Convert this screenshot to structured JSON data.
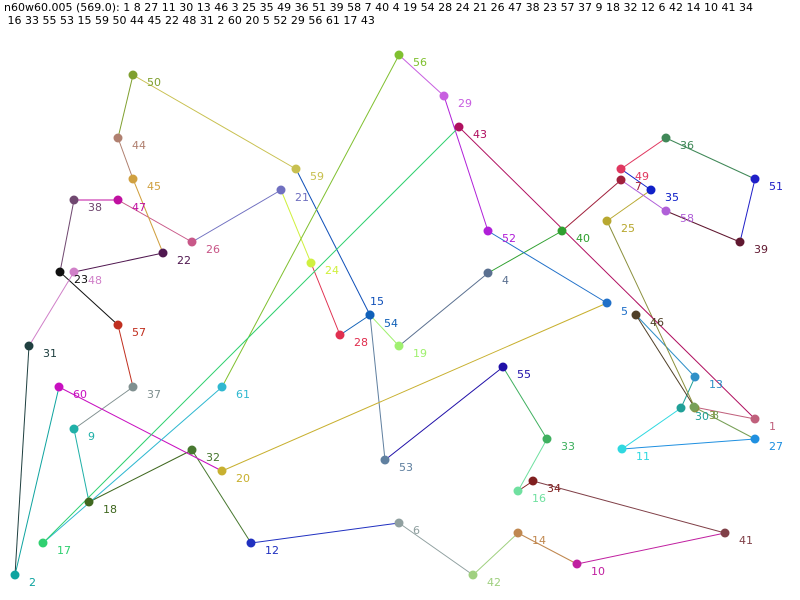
{
  "header": {
    "line1": "n60w60.005 (569.0): 1 8 27 11 30 13 46 3 25 35 49 36 51 39 58 7 40 4 19 54 28 24 21 26 47 38 23 57 37 9 18 32 12 6 42 14 10 41 34",
    "line2": " 16 33 55 53 15 59 50 44 45 22 48 31 2 60 20 5 52 29 56 61 17 43"
  },
  "nodes": [
    {
      "id": "1",
      "color": "#c0607c"
    },
    {
      "id": "2",
      "color": "#10a4a0"
    },
    {
      "id": "3",
      "color": "#8a8f3c"
    },
    {
      "id": "4",
      "color": "#5a7090"
    },
    {
      "id": "5",
      "color": "#2070c8"
    },
    {
      "id": "6",
      "color": "#90a0a0"
    },
    {
      "id": "7",
      "color": "#a0203c"
    },
    {
      "id": "8",
      "color": "#78a058"
    },
    {
      "id": "9",
      "color": "#20b0a8"
    },
    {
      "id": "10",
      "color": "#c020a0"
    },
    {
      "id": "11",
      "color": "#30d8e0"
    },
    {
      "id": "12",
      "color": "#2030c0"
    },
    {
      "id": "13",
      "color": "#3090c8"
    },
    {
      "id": "14",
      "color": "#c08850"
    },
    {
      "id": "15",
      "color": "#1050b8"
    },
    {
      "id": "16",
      "color": "#70e0a0"
    },
    {
      "id": "17",
      "color": "#30d070"
    },
    {
      "id": "18",
      "color": "#406820"
    },
    {
      "id": "19",
      "color": "#a0f070"
    },
    {
      "id": "20",
      "color": "#c8b030"
    },
    {
      "id": "21",
      "color": "#7070c0"
    },
    {
      "id": "22",
      "color": "#501850"
    },
    {
      "id": "23",
      "color": "#101010"
    },
    {
      "id": "24",
      "color": "#d0f040"
    },
    {
      "id": "25",
      "color": "#b8a830"
    },
    {
      "id": "26",
      "color": "#c85888"
    },
    {
      "id": "27",
      "color": "#2090e0"
    },
    {
      "id": "28",
      "color": "#e03050"
    },
    {
      "id": "29",
      "color": "#c860e0"
    },
    {
      "id": "30",
      "color": "#20a098"
    },
    {
      "id": "31",
      "color": "#204040"
    },
    {
      "id": "32",
      "color": "#487830"
    },
    {
      "id": "33",
      "color": "#40b060"
    },
    {
      "id": "34",
      "color": "#802020"
    },
    {
      "id": "35",
      "color": "#1020c8"
    },
    {
      "id": "36",
      "color": "#408858"
    },
    {
      "id": "37",
      "color": "#809090"
    },
    {
      "id": "38",
      "color": "#704870"
    },
    {
      "id": "39",
      "color": "#601830"
    },
    {
      "id": "40",
      "color": "#30a030"
    },
    {
      "id": "41",
      "color": "#804048"
    },
    {
      "id": "42",
      "color": "#a0d080"
    },
    {
      "id": "43",
      "color": "#b01060"
    },
    {
      "id": "44",
      "color": "#b08070"
    },
    {
      "id": "45",
      "color": "#d0a040"
    },
    {
      "id": "46",
      "color": "#504028"
    },
    {
      "id": "47",
      "color": "#c010a0"
    },
    {
      "id": "48",
      "color": "#d080c8"
    },
    {
      "id": "49",
      "color": "#e03860"
    },
    {
      "id": "50",
      "color": "#80a030"
    },
    {
      "id": "51",
      "color": "#2020c8"
    },
    {
      "id": "52",
      "color": "#b020d8"
    },
    {
      "id": "53",
      "color": "#6080a0"
    },
    {
      "id": "54",
      "color": "#1060b8"
    },
    {
      "id": "55",
      "color": "#2010a8"
    },
    {
      "id": "56",
      "color": "#80c030"
    },
    {
      "id": "57",
      "color": "#c03020"
    },
    {
      "id": "58",
      "color": "#b060d8"
    },
    {
      "id": "59",
      "color": "#c8c050"
    },
    {
      "id": "60",
      "color": "#c810c0"
    },
    {
      "id": "61",
      "color": "#30b8d0"
    }
  ],
  "tour": [
    "1",
    "8",
    "27",
    "11",
    "30",
    "13",
    "46",
    "3",
    "25",
    "35",
    "49",
    "36",
    "51",
    "39",
    "58",
    "7",
    "40",
    "4",
    "19",
    "54",
    "28",
    "24",
    "21",
    "26",
    "47",
    "38",
    "23",
    "57",
    "37",
    "9",
    "18",
    "32",
    "12",
    "6",
    "42",
    "14",
    "10",
    "41",
    "34",
    "16",
    "33",
    "55",
    "53",
    "15",
    "59",
    "50",
    "44",
    "45",
    "22",
    "48",
    "31",
    "2",
    "60",
    "20",
    "5",
    "52",
    "29",
    "56",
    "61",
    "17",
    "43"
  ]
}
